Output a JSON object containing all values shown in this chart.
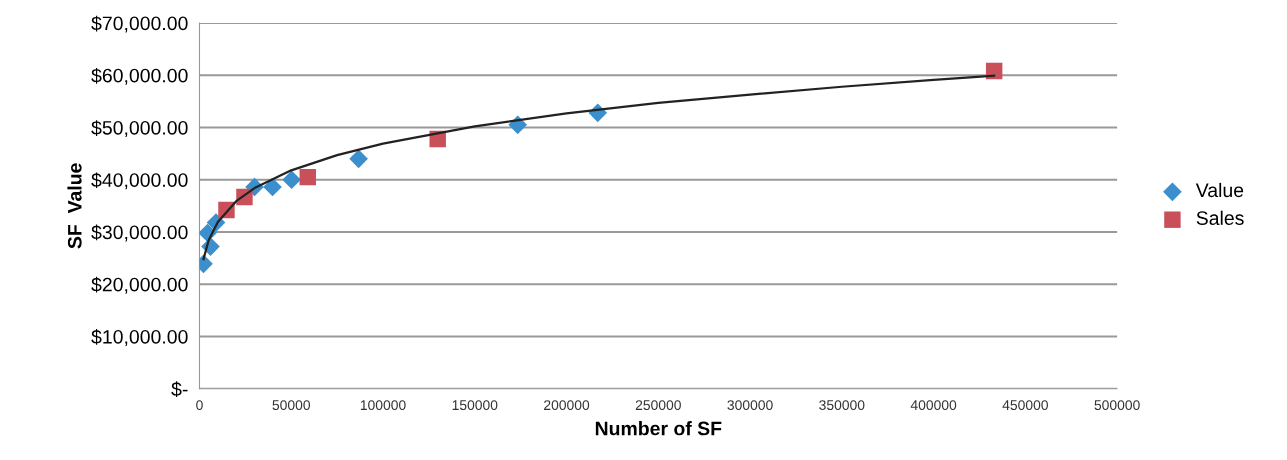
{
  "chart_data": {
    "type": "scatter",
    "xlabel": "Number of SF",
    "ylabel": "SF  Value",
    "xlim": [
      0,
      500000
    ],
    "xticks": [
      0,
      50000,
      100000,
      150000,
      200000,
      250000,
      300000,
      350000,
      400000,
      450000,
      500000
    ],
    "ylim": [
      0,
      70000
    ],
    "yticks": [
      {
        "value": 0,
        "label": "$-"
      },
      {
        "value": 10000,
        "label": "$10,000.00"
      },
      {
        "value": 20000,
        "label": "$20,000.00"
      },
      {
        "value": 30000,
        "label": "$30,000.00"
      },
      {
        "value": 40000,
        "label": "$40,000.00"
      },
      {
        "value": 50000,
        "label": "$50,000.00"
      },
      {
        "value": 60000,
        "label": "$60,000.00"
      },
      {
        "value": 70000,
        "label": "$70,000.00"
      }
    ],
    "grid": "y",
    "legend": "right",
    "series": [
      {
        "name": "Value",
        "color": "#3a8fcc",
        "marker": "diamond",
        "x": [
          2200,
          4400,
          6000,
          7600,
          9000,
          30000,
          39800,
          50200,
          86700,
          173400,
          217000
        ],
        "values": [
          23900,
          29800,
          27200,
          null,
          31800,
          38600,
          38600,
          40000,
          44000,
          50500,
          52800
        ]
      },
      {
        "name": "Sales",
        "color": "#c9505a",
        "marker": "square",
        "x": [
          14700,
          24500,
          59000,
          129800,
          433000
        ],
        "values": [
          34200,
          36700,
          40500,
          47800,
          60800
        ]
      },
      {
        "type": "line",
        "color": "#222222",
        "marker": "none",
        "x": [
          2200,
          5000,
          10000,
          20000,
          30000,
          50000,
          75000,
          100000,
          150000,
          200000,
          250000,
          300000,
          350000,
          400000,
          433000
        ],
        "values": [
          24800,
          28400,
          31900,
          35900,
          38400,
          41800,
          44700,
          46900,
          50200,
          52700,
          54700,
          56300,
          57800,
          59100,
          59900
        ]
      }
    ]
  }
}
